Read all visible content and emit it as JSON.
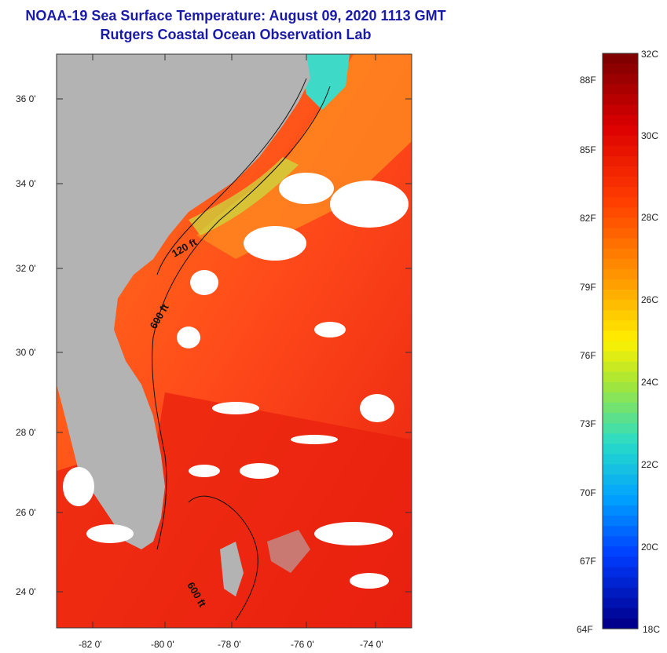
{
  "title": "NOAA-19 Sea Surface Temperature:  August 09, 2020 1113 GMT",
  "subtitle": "Rutgers Coastal Ocean Observation Lab",
  "lat_labels": [
    "36 0'",
    "34 0'",
    "32 0'",
    "30 0'",
    "28 0'",
    "26 0'",
    "24 0'"
  ],
  "lon_labels": [
    "-82 0'",
    "-80 0'",
    "-78 0'",
    "-76 0'",
    "-74 0'"
  ],
  "contour_labels": [
    "120 ft",
    "600 ft",
    "600 ft"
  ],
  "colorbar": {
    "celsius": [
      "32C",
      "30C",
      "28C",
      "26C",
      "24C",
      "22C",
      "20C",
      "18C"
    ],
    "fahrenheit": [
      "88F",
      "85F",
      "82F",
      "79F",
      "76F",
      "73F",
      "70F",
      "67F",
      "64F"
    ]
  },
  "colors": {
    "land": "#b3b3b3",
    "ocean_warm": "#ff4a1a",
    "ocean_hot": "#e8200f",
    "shelf_orange": "#ff8a1f",
    "cloud": "#ffffff",
    "title": "#1a1aa8"
  }
}
